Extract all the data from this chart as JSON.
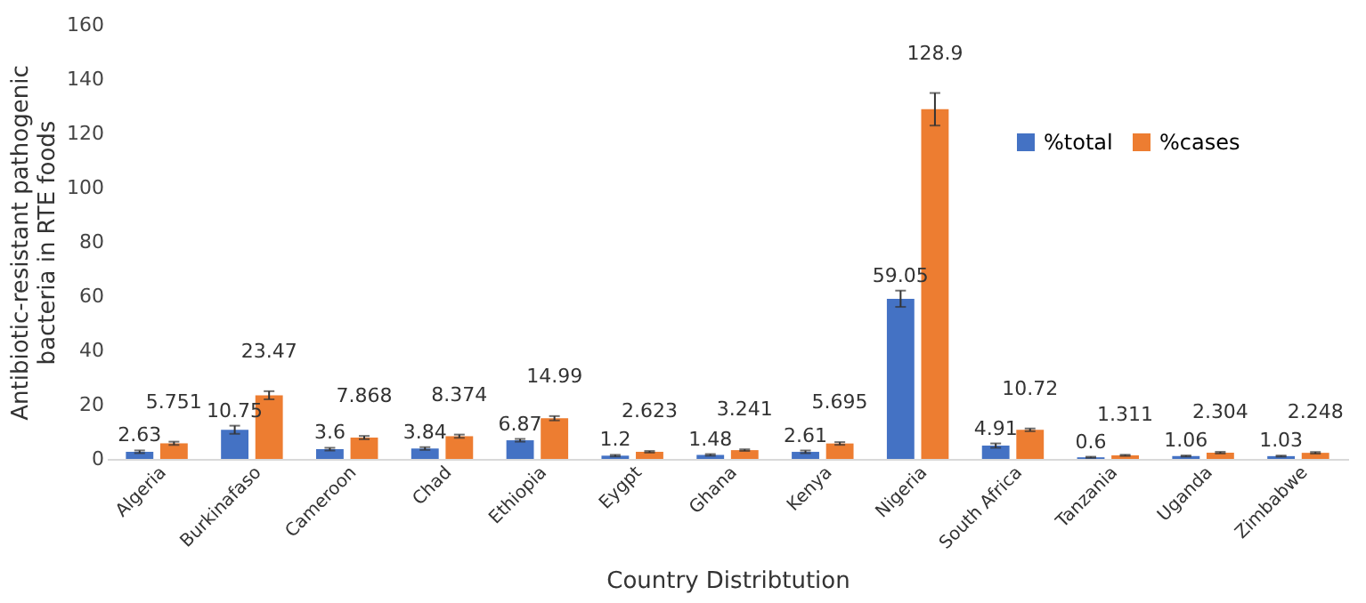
{
  "chart_data": {
    "type": "bar",
    "xlabel": "Country Distribtution",
    "ylabel": "Antibiotic-resistant pathogenic bacteria in RTE foods",
    "categories": [
      "Algeria",
      "Burkinafaso",
      "Cameroon",
      "Chad",
      "Ethiopia",
      "Eygpt",
      "Ghana",
      "Kenya",
      "Nigeria",
      "South Africa",
      "Tanzania",
      "Uganda",
      "Zimbabwe"
    ],
    "series": [
      {
        "name": "%total",
        "color": "#4472c4",
        "values": [
          2.63,
          10.75,
          3.6,
          3.84,
          6.87,
          1.2,
          1.48,
          2.61,
          59.05,
          4.91,
          0.6,
          1.06,
          1.03
        ],
        "errors": [
          0.5,
          1.5,
          0.5,
          0.5,
          0.5,
          0.3,
          0.3,
          0.5,
          3,
          0.8,
          0.2,
          0.2,
          0.2
        ]
      },
      {
        "name": "%cases",
        "color": "#ed7d31",
        "values": [
          5.751,
          23.47,
          7.868,
          8.374,
          14.99,
          2.623,
          3.241,
          5.695,
          128.9,
          10.72,
          1.311,
          2.304,
          2.248
        ],
        "errors": [
          0.6,
          1.5,
          0.6,
          0.6,
          0.8,
          0.3,
          0.3,
          0.5,
          6,
          0.5,
          0.2,
          0.3,
          0.3
        ]
      }
    ],
    "ylim": [
      0,
      160
    ],
    "yticks": [
      0,
      20,
      40,
      60,
      80,
      100,
      120,
      140,
      160
    ],
    "data_labels": true,
    "legend": "top right"
  }
}
